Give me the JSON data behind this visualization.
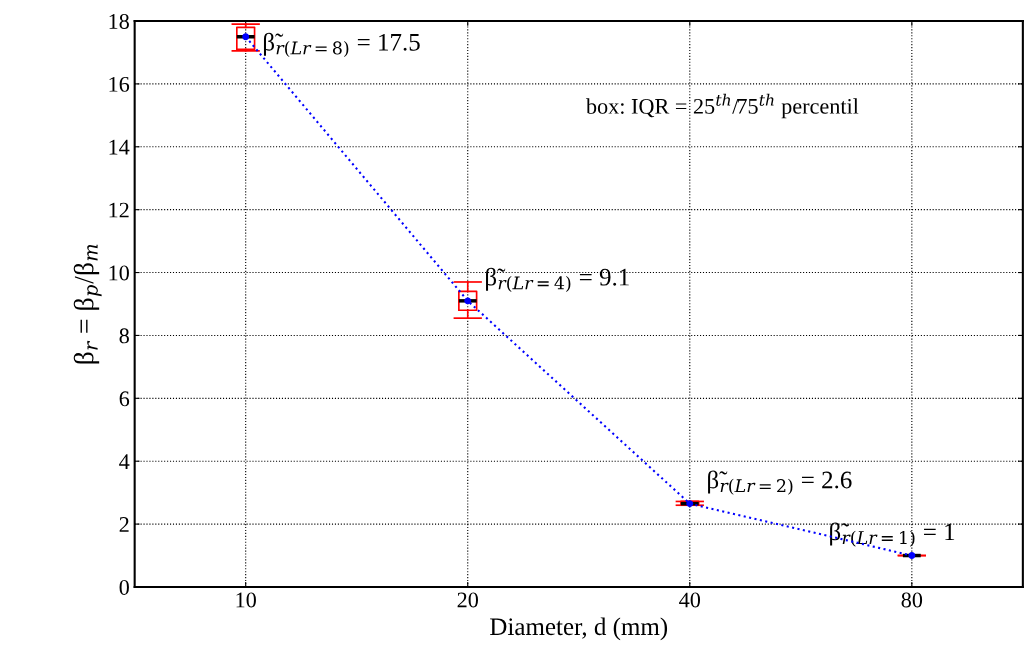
{
  "chart_data": {
    "type": "box",
    "xlabel": "Diameter, d (mm)",
    "ylabel": "β$_{r}$ = β$_{p}$/β$_{m}$",
    "categories": [
      "10",
      "20",
      "40",
      "80"
    ],
    "ylim": [
      0,
      18
    ],
    "yticks": [
      0,
      2,
      4,
      6,
      8,
      10,
      12,
      14,
      16,
      18
    ],
    "grid": true,
    "series": [
      {
        "color": "#ff0000",
        "boxes": [
          {
            "low": 17.05,
            "q1": 17.1,
            "median": 17.5,
            "q3": 17.8,
            "high": 17.9
          },
          {
            "low": 8.55,
            "q1": 8.8,
            "median": 9.1,
            "q3": 9.4,
            "high": 9.7
          },
          {
            "low": 2.6,
            "q1": 2.6,
            "median": 2.65,
            "q3": 2.72,
            "high": 2.72
          },
          {
            "low": 1,
            "q1": 1,
            "median": 1,
            "q3": 1,
            "high": 1
          }
        ]
      },
      {
        "type": "line",
        "color": "#0000ff",
        "values": [
          17.5,
          9.1,
          2.65,
          1
        ],
        "marker": "circle",
        "line_style": "dotted"
      }
    ],
    "annotations": [
      {
        "text": "β̃$_{r(Lr=8)}$ = 17.5",
        "x": "10",
        "y": 17.5
      },
      {
        "text": "β̃$_{r(Lr=4)}$ = 9.1",
        "x": "20",
        "y": 9.1
      },
      {
        "text": "β̃$_{r(Lr=2)}$ = 2.6",
        "x": "40",
        "y": 2.65
      },
      {
        "text": "β̃$_{r(Lr=1)}$ = 1",
        "x": "80",
        "y": 1
      },
      "box: IQR = 25$^{th}$/75$^{th}$ percentil"
    ]
  }
}
